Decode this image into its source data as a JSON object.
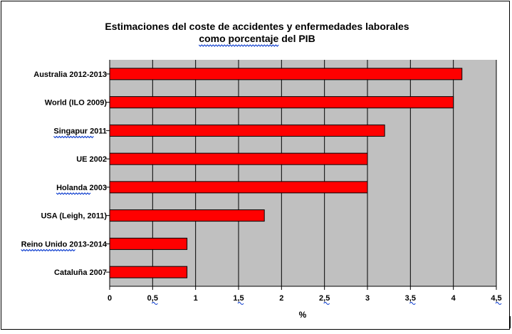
{
  "chart_data": {
    "type": "bar",
    "orientation": "horizontal",
    "title_line1": "Estimaciones del coste de accidentes y enfermedades laborales",
    "title_line2": "como porcentaje del PIB",
    "xlabel": "%",
    "ylabel": "",
    "categories": [
      "Australia 2012-2013",
      "World (ILO 2009)",
      "Singapur 2011",
      "UE 2002",
      "Holanda 2003",
      "USA (Leigh, 2011)",
      "Reino Unido 2013-2014",
      "Cataluña 2007"
    ],
    "values": [
      4.1,
      4.0,
      3.2,
      3.0,
      3.0,
      1.8,
      0.9,
      0.9
    ],
    "xlim": [
      0,
      4.5
    ],
    "xticks": [
      0,
      0.5,
      1,
      1.5,
      2,
      2.5,
      3,
      3.5,
      4,
      4.5
    ],
    "xtick_labels": [
      "0",
      "0,5",
      "1",
      "1,5",
      "2",
      "2,5",
      "3",
      "3,5",
      "4",
      "4,5"
    ],
    "grid": true,
    "legend": "none",
    "colors": {
      "bar": "#ff0000",
      "bar_edge": "#000000",
      "plot_bg": "#c0c0c0",
      "gridline": "#000000",
      "spellcheck": "#0033cc"
    }
  }
}
